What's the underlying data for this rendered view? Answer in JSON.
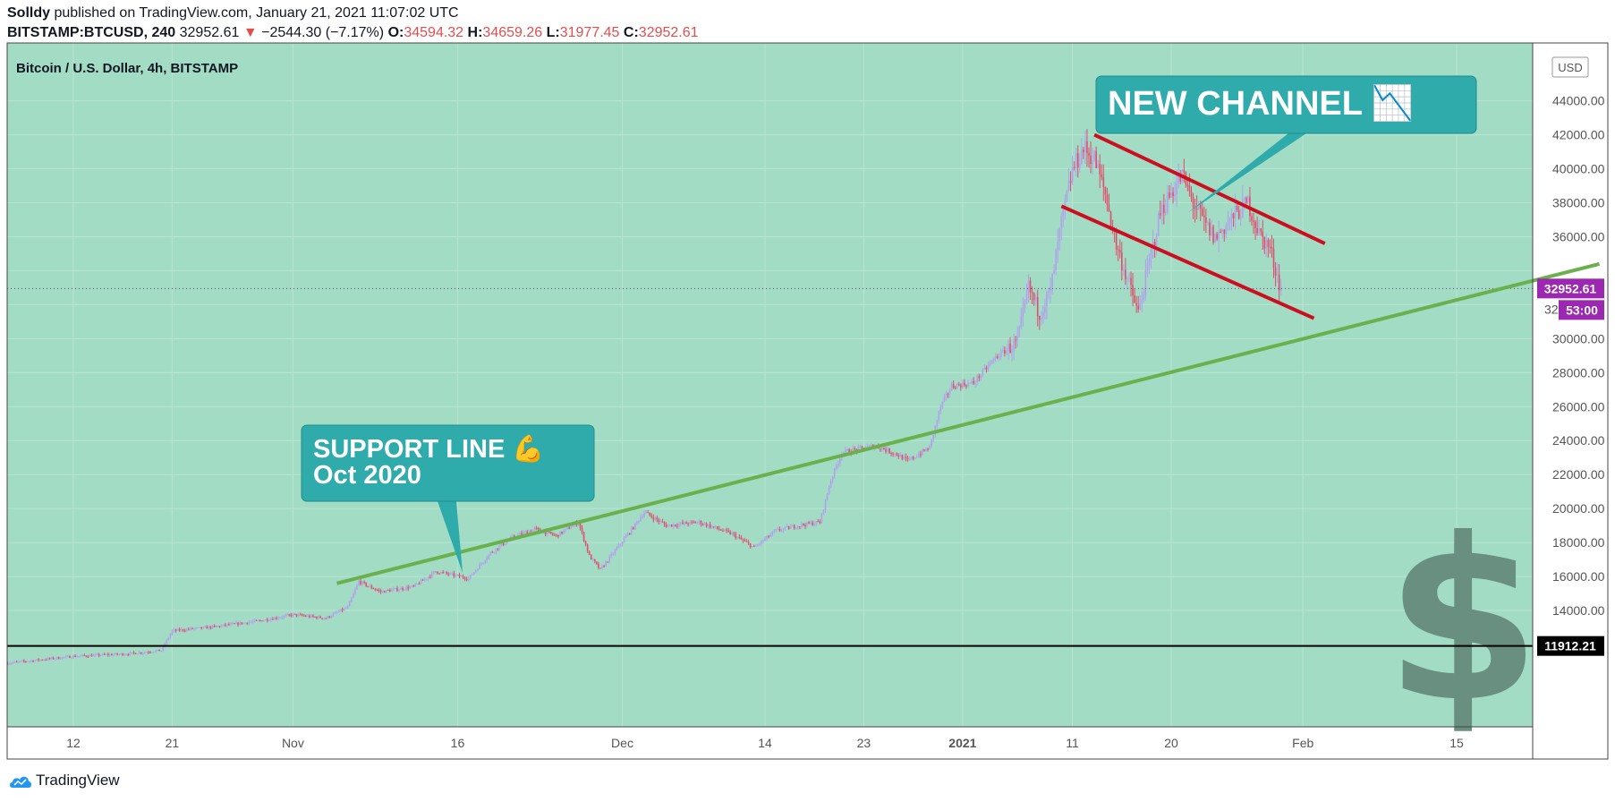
{
  "header": {
    "author": "Solldy",
    "published_text": "published on TradingView.com, January 21, 2021 11:07:02 UTC",
    "symbol": "BITSTAMP:BTCUSD, 240",
    "last": "32952.61",
    "change": "−2544.30 (−7.17%)",
    "o_label": "O:",
    "o_value": "34594.32",
    "h_label": "H:",
    "h_value": "34659.26",
    "l_label": "L:",
    "l_value": "31977.45",
    "c_label": "C:",
    "c_value": "32952.61"
  },
  "chart_title": "Bitcoin / U.S. Dollar, 4h, BITSTAMP",
  "brand": "TradingView",
  "colors": {
    "background": "#a3dcc5",
    "candle_up": "#b0a0ee",
    "candle_down": "#e04e6a",
    "support_line": "#6ab04c",
    "channel_line": "#cc0f1f",
    "callout": "#2fabab",
    "price_badge": "#9c27b0",
    "level_line": "#000000"
  },
  "chart_data": {
    "type": "candlestick",
    "title": "Bitcoin / U.S. Dollar, 4h, BITSTAMP",
    "currency_label": "USD",
    "ylim": [
      10500,
      45500
    ],
    "y_ticks": [
      14000,
      16000,
      18000,
      20000,
      22000,
      24000,
      26000,
      28000,
      30000,
      32000,
      34000,
      36000,
      38000,
      40000,
      42000,
      44000
    ],
    "x_ticks": [
      {
        "label": "12",
        "day": 0,
        "bold": false
      },
      {
        "label": "21",
        "day": 9,
        "bold": false
      },
      {
        "label": "Nov",
        "day": 20,
        "bold": false
      },
      {
        "label": "16",
        "day": 35,
        "bold": false
      },
      {
        "label": "Dec",
        "day": 50,
        "bold": false
      },
      {
        "label": "14",
        "day": 63,
        "bold": false
      },
      {
        "label": "23",
        "day": 72,
        "bold": false
      },
      {
        "label": "2021",
        "day": 81,
        "bold": true
      },
      {
        "label": "11",
        "day": 91,
        "bold": false
      },
      {
        "label": "20",
        "day": 100,
        "bold": false
      },
      {
        "label": "Feb",
        "day": 112,
        "bold": false
      },
      {
        "label": "15",
        "day": 126,
        "bold": false
      }
    ],
    "price_path": [
      [
        -6,
        10900
      ],
      [
        0,
        11300
      ],
      [
        5,
        11450
      ],
      [
        8,
        11650
      ],
      [
        9,
        12800
      ],
      [
        13,
        13050
      ],
      [
        17,
        13400
      ],
      [
        20,
        13750
      ],
      [
        23,
        13550
      ],
      [
        25,
        14200
      ],
      [
        26,
        15700
      ],
      [
        28,
        15100
      ],
      [
        31,
        15400
      ],
      [
        33,
        16300
      ],
      [
        36,
        15900
      ],
      [
        38,
        17400
      ],
      [
        40,
        18300
      ],
      [
        42,
        18800
      ],
      [
        44,
        18400
      ],
      [
        46,
        19200
      ],
      [
        47,
        17200
      ],
      [
        48,
        16400
      ],
      [
        51,
        18900
      ],
      [
        52,
        19800
      ],
      [
        54,
        19000
      ],
      [
        57,
        19200
      ],
      [
        60,
        18500
      ],
      [
        62,
        17700
      ],
      [
        64,
        18700
      ],
      [
        66,
        19000
      ],
      [
        68,
        19200
      ],
      [
        69,
        21700
      ],
      [
        70,
        23300
      ],
      [
        73,
        23700
      ],
      [
        75,
        23200
      ],
      [
        76,
        22800
      ],
      [
        78,
        23600
      ],
      [
        79,
        26000
      ],
      [
        80,
        27200
      ],
      [
        82,
        27400
      ],
      [
        84,
        28900
      ],
      [
        86,
        29800
      ],
      [
        87,
        33000
      ],
      [
        88,
        31500
      ],
      [
        89,
        32800
      ],
      [
        90,
        36800
      ],
      [
        91,
        39900
      ],
      [
        92,
        41200
      ],
      [
        93,
        40600
      ],
      [
        94,
        38500
      ],
      [
        95,
        35500
      ],
      [
        96,
        33500
      ],
      [
        97,
        31500
      ],
      [
        98,
        34500
      ],
      [
        99,
        37400
      ],
      [
        100,
        38600
      ],
      [
        101,
        39600
      ],
      [
        102,
        38000
      ],
      [
        103,
        36800
      ],
      [
        104,
        35900
      ],
      [
        105,
        36700
      ],
      [
        106,
        37400
      ],
      [
        107,
        38000
      ],
      [
        108,
        36200
      ],
      [
        109,
        35300
      ],
      [
        110,
        32900
      ]
    ],
    "last_price": 32952.61,
    "last_price_label": "32952.61",
    "countdown_label": "53:00",
    "hidden_axis_label": "32",
    "horizontal_level": 11912.21,
    "horizontal_level_label": "11912.21",
    "support_line": {
      "from": [
        24,
        15600
      ],
      "to": [
        139,
        34400
      ],
      "label_lines": [
        "SUPPORT LINE 💪",
        "Oct 2020"
      ]
    },
    "channel_upper": {
      "from": [
        93,
        42000
      ],
      "to": [
        114,
        35600
      ]
    },
    "channel_lower": {
      "from": [
        90,
        37800
      ],
      "to": [
        113,
        31200
      ]
    },
    "channel_label": "NEW CHANNEL 📉",
    "watermark": "$"
  }
}
